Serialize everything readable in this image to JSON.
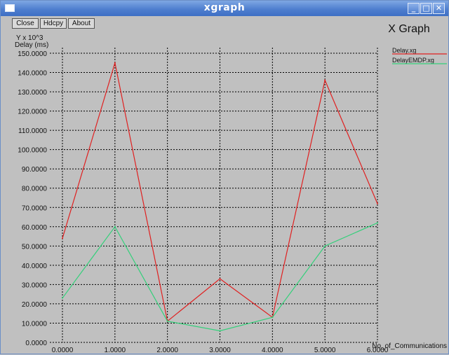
{
  "window": {
    "title": "xgraph",
    "minimize_glyph": "_",
    "maximize_glyph": "□",
    "close_glyph": "✕"
  },
  "toolbar": {
    "close_label": "Close",
    "hardcopy_label": "Hdcpy",
    "about_label": "About"
  },
  "chart_data": {
    "type": "line",
    "title": "X Graph",
    "y_scale_label": "Y x 10^3",
    "ylabel": "Delay (ms)",
    "xlabel": "No_of_Communications",
    "x": [
      0,
      1,
      2,
      3,
      4,
      5,
      6
    ],
    "xlim": [
      0,
      6
    ],
    "ylim": [
      0,
      150
    ],
    "x_ticks": [
      "0.0000",
      "1.0000",
      "2.0000",
      "3.0000",
      "4.0000",
      "5.0000",
      "6.0000"
    ],
    "y_ticks": [
      {
        "v": 0,
        "label": "0.0000"
      },
      {
        "v": 10,
        "label": "10.0000"
      },
      {
        "v": 20,
        "label": "20.0000"
      },
      {
        "v": 30,
        "label": "30.0000"
      },
      {
        "v": 40,
        "label": "40.0000"
      },
      {
        "v": 50,
        "label": "50.0000"
      },
      {
        "v": 60,
        "label": "60.0000"
      },
      {
        "v": 70,
        "label": "70.0000"
      },
      {
        "v": 80,
        "label": "80.0000"
      },
      {
        "v": 90,
        "label": "90.0000"
      },
      {
        "v": 100,
        "label": "100.0000"
      },
      {
        "v": 110,
        "label": "110.0000"
      },
      {
        "v": 120,
        "label": "120.0000"
      },
      {
        "v": 130,
        "label": "130.0000"
      },
      {
        "v": 140,
        "label": "140.0000"
      },
      {
        "v": 150,
        "label": "150.0000"
      }
    ],
    "grid": true,
    "legend_position": "top-right",
    "series": [
      {
        "name": "Delay.xg",
        "color": "#e02020",
        "values": [
          54,
          145,
          11,
          33,
          13,
          136,
          72
        ]
      },
      {
        "name": "DelayEMDP.xg",
        "color": "#33d07a",
        "values": [
          23,
          60,
          11,
          6,
          13,
          50,
          62
        ]
      }
    ]
  }
}
